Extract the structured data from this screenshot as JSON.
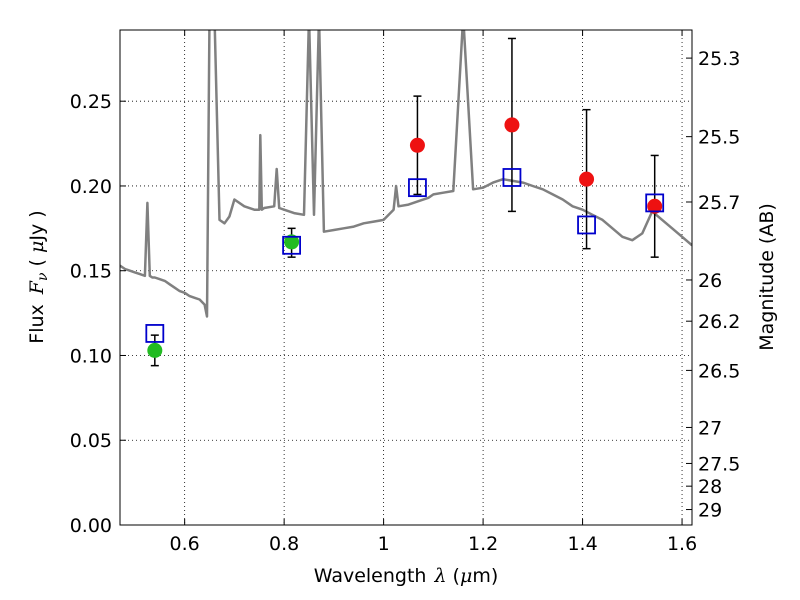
{
  "chart_data": {
    "type": "scatter",
    "xlabel": "Wavelength",
    "xlabel_symbol": "λ",
    "xlabel_unit_open": " (",
    "xlabel_unit_mu": "μ",
    "xlabel_unit_rest": "m)",
    "ylabel": "Flux",
    "ylabel_symbol": "F",
    "ylabel_symbol_sub": "ν",
    "ylabel_unit_open": " ( ",
    "ylabel_unit_mu": "μ",
    "ylabel_unit_rest": "Jy )",
    "y2label": "Magnitude (AB)",
    "xlim": [
      0.47,
      1.62
    ],
    "ylim": [
      0.0,
      0.292
    ],
    "grid": "dotted",
    "x_ticks": [
      0.6,
      0.8,
      1.0,
      1.2,
      1.4,
      1.6
    ],
    "x_tick_labels": [
      "0.6",
      "0.8",
      "1",
      "1.2",
      "1.4",
      "1.6"
    ],
    "y_ticks": [
      0.0,
      0.05,
      0.1,
      0.15,
      0.2,
      0.25
    ],
    "y_tick_labels": [
      "0.00",
      "0.05",
      "0.10",
      "0.15",
      "0.20",
      "0.25"
    ],
    "y2_ticks": [
      {
        "mag": 25.3,
        "label": "25.3"
      },
      {
        "mag": 25.5,
        "label": "25.5"
      },
      {
        "mag": 25.7,
        "label": "25.7"
      },
      {
        "mag": 26.0,
        "label": "26"
      },
      {
        "mag": 26.2,
        "label": "26.2"
      },
      {
        "mag": 26.5,
        "label": "26.5"
      },
      {
        "mag": 27.0,
        "label": "27"
      },
      {
        "mag": 27.5,
        "label": "27.5"
      },
      {
        "mag": 28.0,
        "label": "28"
      },
      {
        "mag": 29.0,
        "label": "29"
      }
    ],
    "colors": {
      "spectrum": "#808080",
      "green": "#22bb22",
      "red": "#ee1111",
      "box": "#0000cc",
      "errorbar": "#000000"
    },
    "series": [
      {
        "name": "spectrum",
        "kind": "line",
        "x": [
          0.47,
          0.48,
          0.49,
          0.5,
          0.51,
          0.52,
          0.525,
          0.53,
          0.535,
          0.54,
          0.55,
          0.56,
          0.57,
          0.58,
          0.59,
          0.6,
          0.61,
          0.62,
          0.63,
          0.64,
          0.645,
          0.65,
          0.652,
          0.655,
          0.66,
          0.67,
          0.68,
          0.69,
          0.7,
          0.72,
          0.74,
          0.75,
          0.752,
          0.755,
          0.76,
          0.78,
          0.785,
          0.79,
          0.8,
          0.82,
          0.84,
          0.85,
          0.86,
          0.87,
          0.88,
          0.9,
          0.92,
          0.94,
          0.96,
          0.98,
          1.0,
          1.02,
          1.025,
          1.03,
          1.05,
          1.07,
          1.09,
          1.1,
          1.12,
          1.14,
          1.16,
          1.18,
          1.2,
          1.22,
          1.24,
          1.26,
          1.28,
          1.3,
          1.32,
          1.34,
          1.36,
          1.38,
          1.4,
          1.42,
          1.44,
          1.46,
          1.48,
          1.5,
          1.52,
          1.54,
          1.56,
          1.58,
          1.6,
          1.62
        ],
        "y": [
          0.153,
          0.151,
          0.15,
          0.149,
          0.148,
          0.147,
          0.19,
          0.147,
          0.146,
          0.146,
          0.145,
          0.144,
          0.142,
          0.14,
          0.138,
          0.137,
          0.135,
          0.134,
          0.133,
          0.13,
          0.123,
          0.3,
          0.3,
          0.3,
          0.3,
          0.18,
          0.178,
          0.182,
          0.192,
          0.188,
          0.186,
          0.186,
          0.23,
          0.186,
          0.187,
          0.188,
          0.21,
          0.187,
          0.186,
          0.184,
          0.183,
          0.3,
          0.183,
          0.3,
          0.173,
          0.174,
          0.175,
          0.176,
          0.178,
          0.179,
          0.18,
          0.186,
          0.2,
          0.188,
          0.189,
          0.191,
          0.193,
          0.195,
          0.196,
          0.197,
          0.3,
          0.198,
          0.199,
          0.202,
          0.204,
          0.203,
          0.202,
          0.2,
          0.198,
          0.195,
          0.192,
          0.188,
          0.186,
          0.183,
          0.18,
          0.175,
          0.17,
          0.168,
          0.172,
          0.185,
          0.18,
          0.175,
          0.17,
          0.165
        ]
      },
      {
        "name": "green points",
        "kind": "points",
        "x": [
          0.54,
          0.815
        ],
        "y": [
          0.103,
          0.167
        ],
        "yerr_low": [
          0.094,
          0.158
        ],
        "yerr_high": [
          0.112,
          0.175
        ]
      },
      {
        "name": "red points",
        "kind": "points",
        "x": [
          1.068,
          1.258,
          1.408,
          1.545
        ],
        "y": [
          0.224,
          0.236,
          0.204,
          0.188
        ],
        "yerr_low": [
          0.195,
          0.185,
          0.163,
          0.158
        ],
        "yerr_high": [
          0.253,
          0.287,
          0.245,
          0.218
        ]
      },
      {
        "name": "blue boxes",
        "kind": "squares",
        "x": [
          0.54,
          0.815,
          1.068,
          1.258,
          1.408,
          1.545
        ],
        "y": [
          0.113,
          0.165,
          0.199,
          0.205,
          0.177,
          0.19
        ]
      }
    ]
  }
}
